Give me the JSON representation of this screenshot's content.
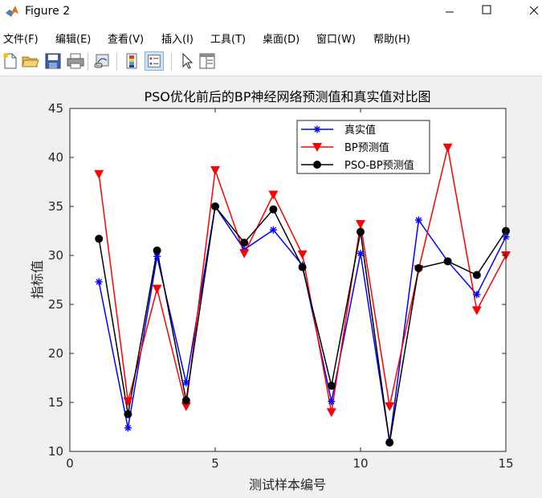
{
  "window": {
    "title": "Figure 2",
    "icon": "matlab-logo-icon",
    "controls": [
      "minimize",
      "maximize",
      "close"
    ]
  },
  "menu": [
    "文件(F)",
    "编辑(E)",
    "查看(V)",
    "插入(I)",
    "工具(T)",
    "桌面(D)",
    "窗口(W)",
    "帮助(H)"
  ],
  "toolbar": {
    "icons": [
      "new-figure-icon",
      "open-file-icon",
      "save-icon",
      "print-icon",
      "link-plot-icon",
      "colorbar-icon",
      "legend-icon",
      "pointer-icon",
      "property-inspector-icon"
    ],
    "active": "legend-icon"
  },
  "chart_data": {
    "type": "line",
    "title": "PSO优化前后的BP神经网络预测值和真实值对比图",
    "xlabel": "测试样本编号",
    "ylabel": "指标值",
    "xlim": [
      0,
      15
    ],
    "ylim": [
      10,
      45
    ],
    "xticks": [
      0,
      5,
      10,
      15
    ],
    "yticks": [
      10,
      15,
      20,
      25,
      30,
      35,
      40,
      45
    ],
    "grid": false,
    "legend_position": "top-right",
    "x": [
      1,
      2,
      3,
      4,
      5,
      6,
      7,
      8,
      9,
      10,
      11,
      12,
      13,
      14,
      15
    ],
    "series": [
      {
        "name": "真实值",
        "color": "#0000ff",
        "marker": "asterisk",
        "values": [
          27.3,
          12.4,
          29.9,
          17.0,
          35.0,
          30.6,
          32.6,
          29.0,
          15.1,
          30.2,
          11.0,
          33.6,
          29.4,
          26.0,
          31.9
        ]
      },
      {
        "name": "BP预测值",
        "color": "#ff0000",
        "marker": "triangle-down",
        "values": [
          38.3,
          15.1,
          26.6,
          14.6,
          38.7,
          30.2,
          36.2,
          30.1,
          14.0,
          33.2,
          14.6,
          28.6,
          41.0,
          24.4,
          30.0
        ]
      },
      {
        "name": "PSO-BP预测值",
        "color": "#000000",
        "marker": "circle",
        "values": [
          31.7,
          13.8,
          30.5,
          15.2,
          35.0,
          31.3,
          34.7,
          28.8,
          16.7,
          32.4,
          10.9,
          28.7,
          29.4,
          28.0,
          32.5
        ]
      }
    ]
  }
}
